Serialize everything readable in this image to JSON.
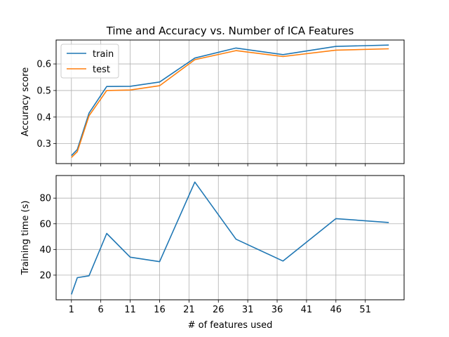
{
  "chart_data": [
    {
      "type": "line",
      "title": "Time and Accuracy vs. Number of ICA Features",
      "xlabel": "",
      "ylabel": "Accuracy score",
      "xlim": [
        -1.6,
        57.6
      ],
      "ylim": [
        0.225,
        0.69
      ],
      "xticks": [
        1,
        6,
        11,
        16,
        21,
        26,
        31,
        36,
        41,
        46,
        51
      ],
      "yticks": [
        0.3,
        0.4,
        0.5,
        0.6
      ],
      "ytick_labels": [
        "0.3",
        "0.4",
        "0.5",
        "0.6"
      ],
      "grid": true,
      "legend": "top-left",
      "x": [
        1,
        2,
        4,
        7,
        11,
        16,
        22,
        29,
        37,
        46,
        55
      ],
      "series": [
        {
          "name": "train",
          "color": "#1f77b4",
          "values": [
            0.255,
            0.278,
            0.415,
            0.515,
            0.516,
            0.532,
            0.622,
            0.66,
            0.635,
            0.666,
            0.671
          ]
        },
        {
          "name": "test",
          "color": "#ff7f0e",
          "values": [
            0.248,
            0.27,
            0.405,
            0.5,
            0.502,
            0.518,
            0.616,
            0.65,
            0.628,
            0.652,
            0.657
          ]
        }
      ]
    },
    {
      "type": "line",
      "title": "",
      "xlabel": "# of features used",
      "ylabel": "Training time (s)",
      "xlim": [
        -1.6,
        57.6
      ],
      "ylim": [
        0.8,
        97.6
      ],
      "xticks": [
        1,
        6,
        11,
        16,
        21,
        26,
        31,
        36,
        41,
        46,
        51
      ],
      "yticks": [
        20,
        40,
        60,
        80
      ],
      "ytick_labels": [
        "20",
        "40",
        "60",
        "80"
      ],
      "grid": true,
      "x": [
        1,
        2,
        4,
        7,
        11,
        16,
        22,
        29,
        37,
        46,
        55
      ],
      "series": [
        {
          "color": "#1f77b4",
          "values": [
            5,
            18,
            19.5,
            52.5,
            34,
            30.5,
            92.5,
            48,
            31,
            64,
            61
          ]
        }
      ]
    }
  ]
}
